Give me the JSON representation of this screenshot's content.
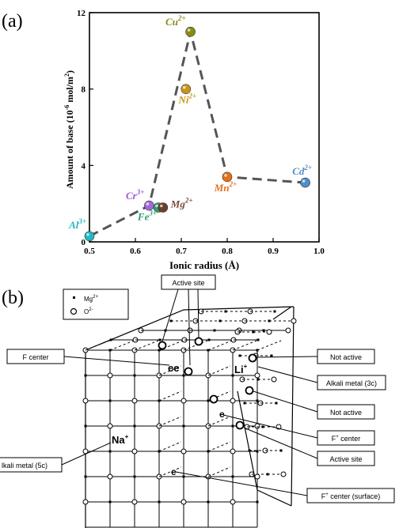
{
  "panel_a": {
    "label": "(a)",
    "chart_data": {
      "type": "scatter",
      "title": "",
      "xlabel": "Ionic radius (Å)",
      "ylabel_main": "Amount of base (10",
      "ylabel_sup": "-6",
      "ylabel_tail": " mol/m",
      "ylabel_sup2": "2",
      "ylabel_close": ")",
      "xlim": [
        0.5,
        1.0
      ],
      "ylim": [
        0,
        12
      ],
      "xticks": [
        "0.5",
        "0.6",
        "0.7",
        "0.8",
        "0.9",
        "1.0"
      ],
      "yticks": [
        "0",
        "4",
        "8",
        "12"
      ],
      "grid": false,
      "connector_line": "dashed",
      "points": [
        {
          "ion": "Al",
          "charge": "3+",
          "x": 0.5,
          "y": 0.3,
          "color": "#22b8c4",
          "label_color": "#22b8c4"
        },
        {
          "ion": "Cr",
          "charge": "3+",
          "x": 0.63,
          "y": 1.9,
          "color": "#a06ad8",
          "label_color": "#9a5bd6"
        },
        {
          "ion": "Fe",
          "charge": "3+",
          "x": 0.65,
          "y": 1.8,
          "color": "#2f9e72",
          "label_color": "#2f9e72"
        },
        {
          "ion": "Mg",
          "charge": "2+",
          "x": 0.66,
          "y": 1.8,
          "color": "#6e3f2e",
          "label_color": "#7a4a3a"
        },
        {
          "ion": "Cu",
          "charge": "2+",
          "x": 0.72,
          "y": 11.0,
          "color": "#8a8a14",
          "label_color": "#8a8a14"
        },
        {
          "ion": "Ni",
          "charge": "2+",
          "x": 0.71,
          "y": 8.0,
          "color": "#c9961a",
          "label_color": "#c9961a"
        },
        {
          "ion": "Mn",
          "charge": "2+",
          "x": 0.8,
          "y": 3.4,
          "color": "#e4701c",
          "label_color": "#e4701c"
        },
        {
          "ion": "Cd",
          "charge": "2+",
          "x": 0.97,
          "y": 3.1,
          "color": "#4f8fc7",
          "label_color": "#4f8fc7"
        }
      ],
      "line_order": [
        "Al",
        "Cr",
        "Cu",
        "Mn",
        "Cd"
      ]
    }
  },
  "panel_b": {
    "label": "(b)",
    "legend": {
      "mg_label": "Mg",
      "mg_sup": "2+",
      "o_label": "O",
      "o_sup": "2-"
    },
    "callouts": {
      "active_site_top": "Active site",
      "f_center": "F center",
      "not_active_1": "Not active",
      "alkali_3c": "Alkali metal (3c)",
      "not_active_2": "Not active",
      "f_plus_center": "F",
      "f_plus_sup": "+",
      "f_plus_tail": " center",
      "active_site_bottom": "Active site",
      "alkali_5c": "lkali metal (5c)",
      "f_plus_surface": "F",
      "f_plus_surface_sup": "+",
      "f_plus_surface_tail": " center (surface)"
    },
    "lattice_labels": {
      "ee": "ee",
      "li": "Li",
      "li_sup": "+",
      "na": "Na",
      "na_sup": "+",
      "e1": "e",
      "e2": "e"
    }
  }
}
